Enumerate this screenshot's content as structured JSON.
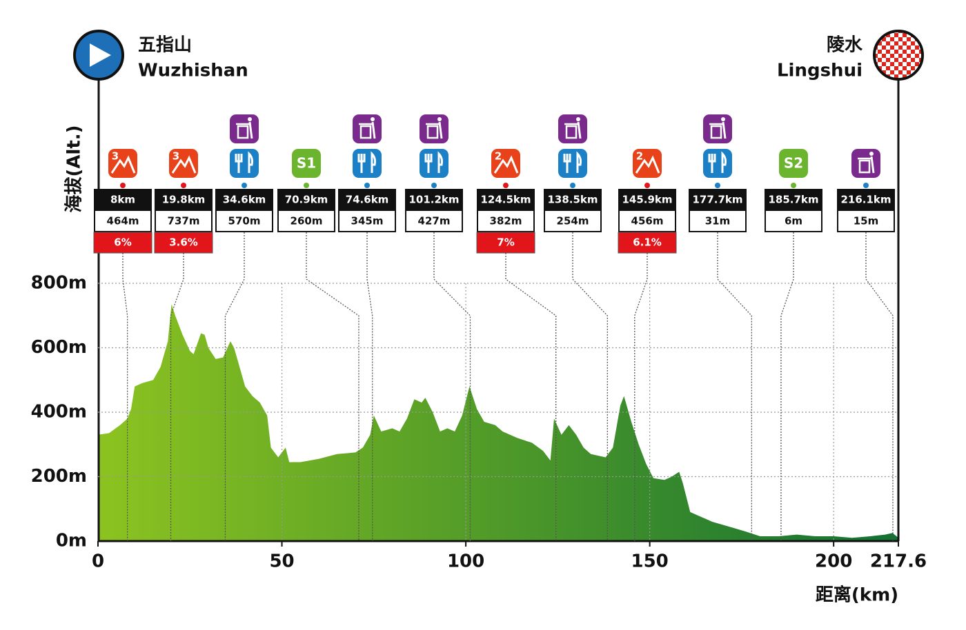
{
  "chart_data": {
    "type": "area",
    "start": {
      "zh": "五指山",
      "en": "Wuzhishan"
    },
    "finish": {
      "zh": "陵水",
      "en": "Lingshui"
    },
    "y_label": "海拔(Alt.)",
    "x_label": "距离(km)",
    "x": [
      0,
      3,
      6,
      8,
      9,
      10,
      12,
      15,
      17,
      19,
      20,
      21,
      23,
      25,
      26,
      28,
      29,
      30,
      32,
      34,
      36,
      37,
      38,
      40,
      42,
      44,
      46,
      47,
      49,
      51,
      52,
      55,
      60,
      65,
      70,
      72,
      74,
      75,
      77,
      80,
      82,
      84,
      86,
      88,
      89,
      91,
      93,
      95,
      97,
      99,
      101,
      103,
      105,
      108,
      110,
      114,
      118,
      121,
      123,
      124,
      126,
      128,
      130,
      132,
      134,
      136,
      138,
      140,
      142,
      143,
      145,
      147,
      149,
      151,
      154,
      156,
      158,
      159,
      161,
      163,
      165,
      167,
      170,
      173,
      176,
      180,
      185,
      190,
      195,
      200,
      205,
      210,
      214,
      216,
      217.6
    ],
    "values": [
      330,
      335,
      360,
      380,
      410,
      480,
      490,
      500,
      540,
      620,
      735,
      700,
      640,
      590,
      580,
      645,
      640,
      600,
      565,
      570,
      620,
      600,
      560,
      480,
      450,
      430,
      390,
      290,
      260,
      290,
      245,
      245,
      255,
      270,
      275,
      290,
      330,
      390,
      340,
      350,
      340,
      380,
      440,
      430,
      445,
      400,
      340,
      350,
      340,
      390,
      480,
      410,
      370,
      360,
      340,
      320,
      305,
      280,
      250,
      380,
      330,
      360,
      330,
      290,
      270,
      265,
      260,
      290,
      420,
      450,
      370,
      300,
      240,
      195,
      190,
      200,
      215,
      180,
      90,
      80,
      70,
      60,
      50,
      40,
      30,
      15,
      15,
      20,
      15,
      15,
      10,
      15,
      20,
      25,
      10
    ],
    "colors": [
      "#8cc320",
      "#127032"
    ],
    "xlim": [
      0,
      217.6
    ],
    "ylim": [
      0,
      800
    ],
    "xticks": [
      0,
      50,
      100,
      150,
      200,
      217.6
    ],
    "yticks": [
      {
        "value": 0,
        "label": "0m"
      },
      {
        "value": 200,
        "label": "200m"
      },
      {
        "value": 400,
        "label": "400m"
      },
      {
        "value": 600,
        "label": "600m"
      },
      {
        "value": 800,
        "label": "800m"
      }
    ],
    "grid": true,
    "points": [
      {
        "km": 8,
        "km_label": "8km",
        "alt": "464m",
        "grade": "6%",
        "badge": "3"
      },
      {
        "km": 19.8,
        "km_label": "19.8km",
        "alt": "737m",
        "grade": "3.6%",
        "badge": "3"
      },
      {
        "km": 34.6,
        "km_label": "34.6km",
        "alt": "570m",
        "feed": true,
        "waste": true
      },
      {
        "km": 70.9,
        "km_label": "70.9km",
        "alt": "260m",
        "sprint": "S1"
      },
      {
        "km": 74.6,
        "km_label": "74.6km",
        "alt": "345m",
        "feed": true,
        "waste": true
      },
      {
        "km": 101.2,
        "km_label": "101.2km",
        "alt": "427m",
        "feed": true,
        "waste": true
      },
      {
        "km": 124.5,
        "km_label": "124.5km",
        "alt": "382m",
        "grade": "7%",
        "badge": "2"
      },
      {
        "km": 138.5,
        "km_label": "138.5km",
        "alt": "254m",
        "feed": true,
        "waste": true
      },
      {
        "km": 145.9,
        "km_label": "145.9km",
        "alt": "456m",
        "grade": "6.1%",
        "badge": "2"
      },
      {
        "km": 177.7,
        "km_label": "177.7km",
        "alt": "31m",
        "feed": true,
        "waste": true
      },
      {
        "km": 185.7,
        "km_label": "185.7km",
        "alt": "6m",
        "sprint": "S2"
      },
      {
        "km": 216.1,
        "km_label": "216.1km",
        "alt": "15m",
        "waste": true
      }
    ]
  }
}
